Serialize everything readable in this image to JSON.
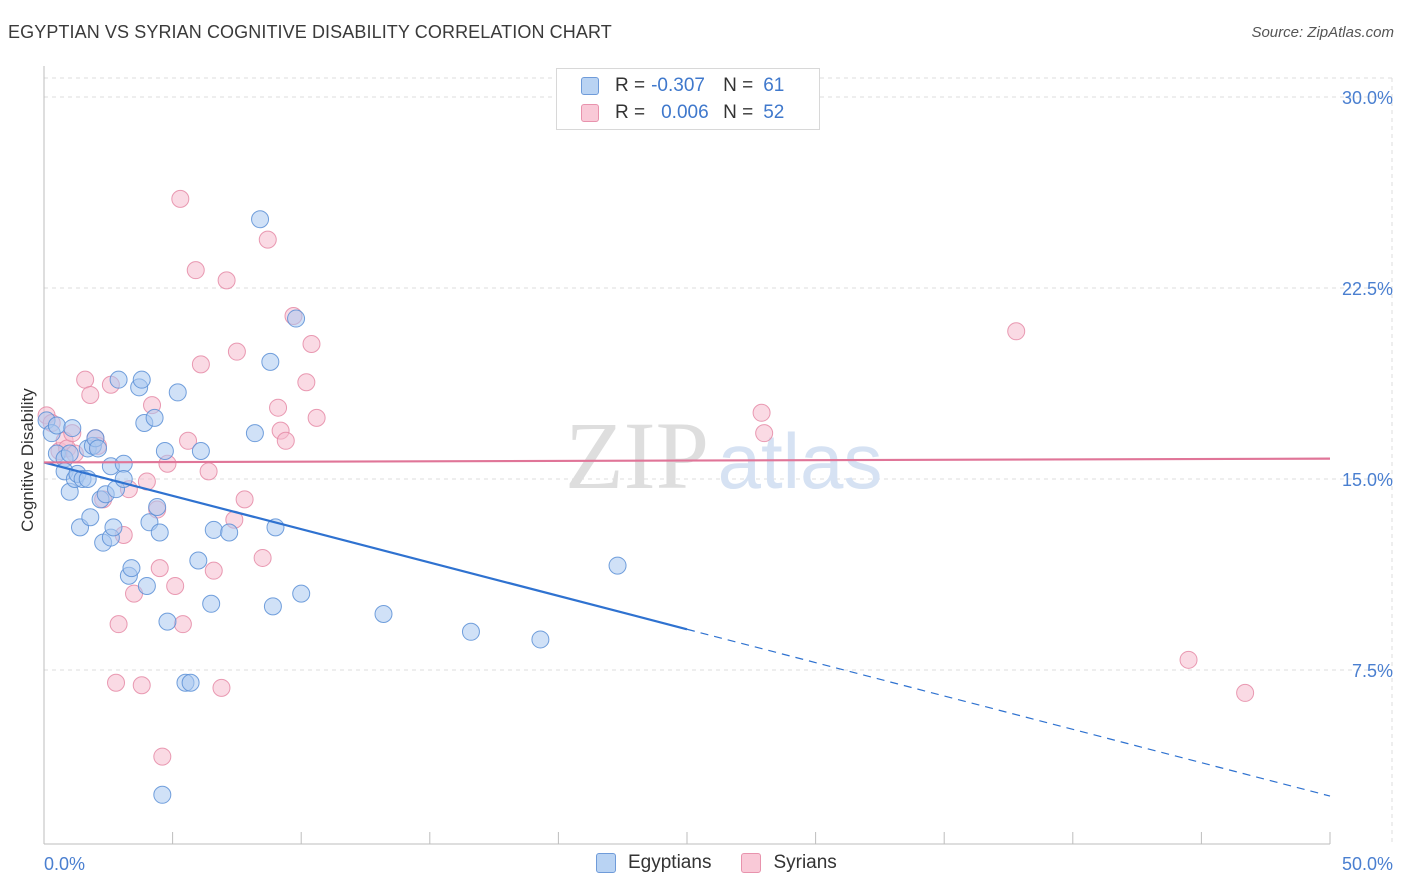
{
  "title": "EGYPTIAN VS SYRIAN COGNITIVE DISABILITY CORRELATION CHART",
  "source": "Source: ZipAtlas.com",
  "watermark": {
    "zip": "ZIP",
    "atlas": "atlas"
  },
  "legend": {
    "rows": [
      {
        "r_label": "R =",
        "r_value": "-0.307",
        "n_label": "N =",
        "n_value": "61"
      },
      {
        "r_label": "R =",
        "r_value": "0.006",
        "n_label": "N =",
        "n_value": "52"
      }
    ]
  },
  "bottom_legend": [
    "Egyptians",
    "Syrians"
  ],
  "colors": {
    "egyptians_fill": "#a9c8f0",
    "egyptians_stroke": "#5b8fd6",
    "egyptians_line": "#2f72d0",
    "syrians_fill": "#f6bccd",
    "syrians_stroke": "#e58aa6",
    "syrians_line": "#e07598",
    "tick_label": "#4a7fd0"
  },
  "chart_data": {
    "type": "scatter",
    "title": "EGYPTIAN VS SYRIAN COGNITIVE DISABILITY CORRELATION CHART",
    "xlabel": "",
    "ylabel": "Cognitive Disability",
    "xlim": [
      0,
      50
    ],
    "ylim": [
      0,
      31.5
    ],
    "x_tick_labels": [
      "0.0%",
      "50.0%"
    ],
    "y_ticks": [
      7.5,
      15.0,
      22.5,
      30.0
    ],
    "y_tick_labels": [
      "7.5%",
      "15.0%",
      "22.5%",
      "30.0%"
    ],
    "grid": true,
    "legend_position": "top-center",
    "series": [
      {
        "name": "Egyptians",
        "points": [
          [
            0.1,
            17.3
          ],
          [
            0.3,
            16.8
          ],
          [
            0.5,
            17.1
          ],
          [
            0.5,
            16.0
          ],
          [
            0.8,
            15.8
          ],
          [
            0.8,
            15.3
          ],
          [
            1.0,
            16.0
          ],
          [
            1.0,
            14.5
          ],
          [
            1.1,
            17.0
          ],
          [
            1.2,
            15.0
          ],
          [
            1.3,
            15.2
          ],
          [
            1.4,
            13.1
          ],
          [
            1.5,
            15.0
          ],
          [
            1.7,
            15.0
          ],
          [
            1.7,
            16.2
          ],
          [
            1.8,
            13.5
          ],
          [
            1.9,
            16.3
          ],
          [
            2.0,
            16.6
          ],
          [
            2.1,
            16.2
          ],
          [
            2.2,
            14.2
          ],
          [
            2.3,
            12.5
          ],
          [
            2.4,
            14.4
          ],
          [
            2.6,
            12.7
          ],
          [
            2.6,
            15.5
          ],
          [
            2.7,
            13.1
          ],
          [
            2.8,
            14.6
          ],
          [
            2.9,
            18.9
          ],
          [
            3.1,
            15.6
          ],
          [
            3.1,
            15.0
          ],
          [
            3.3,
            11.2
          ],
          [
            3.4,
            11.5
          ],
          [
            3.7,
            18.6
          ],
          [
            3.8,
            18.9
          ],
          [
            3.9,
            17.2
          ],
          [
            4.0,
            10.8
          ],
          [
            4.1,
            13.3
          ],
          [
            4.3,
            17.4
          ],
          [
            4.4,
            13.9
          ],
          [
            4.5,
            12.9
          ],
          [
            4.6,
            2.6
          ],
          [
            4.7,
            16.1
          ],
          [
            4.8,
            9.4
          ],
          [
            5.2,
            18.4
          ],
          [
            5.5,
            7.0
          ],
          [
            5.7,
            7.0
          ],
          [
            6.0,
            11.8
          ],
          [
            6.1,
            16.1
          ],
          [
            6.5,
            10.1
          ],
          [
            6.6,
            13.0
          ],
          [
            7.2,
            12.9
          ],
          [
            8.2,
            16.8
          ],
          [
            8.4,
            25.2
          ],
          [
            8.8,
            19.6
          ],
          [
            8.9,
            10.0
          ],
          [
            9.0,
            13.1
          ],
          [
            9.8,
            21.3
          ],
          [
            10.0,
            10.5
          ],
          [
            13.2,
            9.7
          ],
          [
            16.6,
            9.0
          ],
          [
            19.3,
            8.7
          ],
          [
            22.3,
            11.6
          ]
        ]
      },
      {
        "name": "Syrians",
        "points": [
          [
            0.1,
            17.5
          ],
          [
            0.3,
            17.2
          ],
          [
            0.6,
            16.1
          ],
          [
            0.8,
            16.5
          ],
          [
            0.9,
            16.2
          ],
          [
            1.1,
            16.8
          ],
          [
            1.2,
            16.0
          ],
          [
            1.6,
            18.9
          ],
          [
            1.8,
            18.3
          ],
          [
            2.0,
            16.6
          ],
          [
            2.1,
            16.3
          ],
          [
            2.3,
            14.2
          ],
          [
            2.6,
            18.7
          ],
          [
            2.8,
            7.0
          ],
          [
            2.9,
            9.3
          ],
          [
            3.1,
            12.8
          ],
          [
            3.3,
            14.6
          ],
          [
            3.5,
            10.5
          ],
          [
            3.8,
            6.9
          ],
          [
            4.0,
            14.9
          ],
          [
            4.2,
            17.9
          ],
          [
            4.4,
            13.8
          ],
          [
            4.5,
            11.5
          ],
          [
            4.6,
            4.1
          ],
          [
            4.8,
            15.6
          ],
          [
            5.1,
            10.8
          ],
          [
            5.3,
            26.0
          ],
          [
            5.4,
            9.3
          ],
          [
            5.6,
            16.5
          ],
          [
            5.9,
            23.2
          ],
          [
            6.1,
            19.5
          ],
          [
            6.4,
            15.3
          ],
          [
            6.6,
            11.4
          ],
          [
            6.9,
            6.8
          ],
          [
            7.1,
            22.8
          ],
          [
            7.4,
            13.4
          ],
          [
            7.5,
            20.0
          ],
          [
            7.8,
            14.2
          ],
          [
            8.5,
            11.9
          ],
          [
            8.7,
            24.4
          ],
          [
            9.1,
            17.8
          ],
          [
            9.2,
            16.9
          ],
          [
            9.4,
            16.5
          ],
          [
            9.7,
            21.4
          ],
          [
            10.2,
            18.8
          ],
          [
            10.4,
            20.3
          ],
          [
            10.6,
            17.4
          ],
          [
            27.9,
            17.6
          ],
          [
            28.0,
            16.8
          ],
          [
            37.8,
            20.8
          ],
          [
            46.7,
            6.6
          ],
          [
            44.5,
            7.9
          ]
        ]
      }
    ],
    "trend_lines": [
      {
        "series": "Egyptians",
        "x": [
          0,
          25
        ],
        "y": [
          15.65,
          9.1
        ],
        "dashed_extension_to_x": 50,
        "dashed_extension_y": 2.55
      },
      {
        "series": "Syrians",
        "x": [
          0,
          50
        ],
        "y": [
          15.65,
          15.8
        ]
      }
    ]
  }
}
